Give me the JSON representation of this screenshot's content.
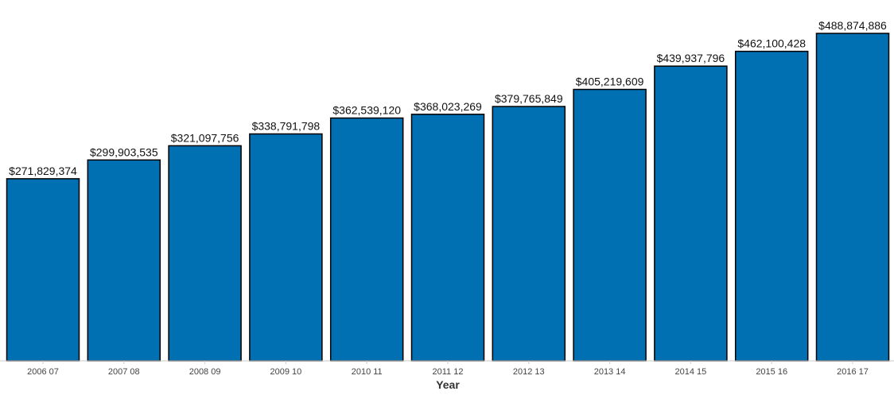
{
  "chart_data": {
    "type": "bar",
    "xlabel": "Year",
    "ylabel": "",
    "ylim": [
      0,
      500000000
    ],
    "grid": false,
    "bar_color": "#0070b2",
    "bar_stroke": "#000000",
    "categories": [
      "2006 07",
      "2007 08",
      "2008 09",
      "2009 10",
      "2010 11",
      "2011 12",
      "2012 13",
      "2013 14",
      "2014 15",
      "2015 16",
      "2016 17"
    ],
    "values": [
      271829374,
      299903535,
      321097756,
      338791798,
      362539120,
      368023269,
      379765849,
      405219609,
      439937796,
      462100428,
      488874886
    ],
    "value_labels": [
      "$271,829,374",
      "$299,903,535",
      "$321,097,756",
      "$338,791,798",
      "$362,539,120",
      "$368,023,269",
      "$379,765,849",
      "$405,219,609",
      "$439,937,796",
      "$462,100,428",
      "$488,874,886"
    ]
  }
}
